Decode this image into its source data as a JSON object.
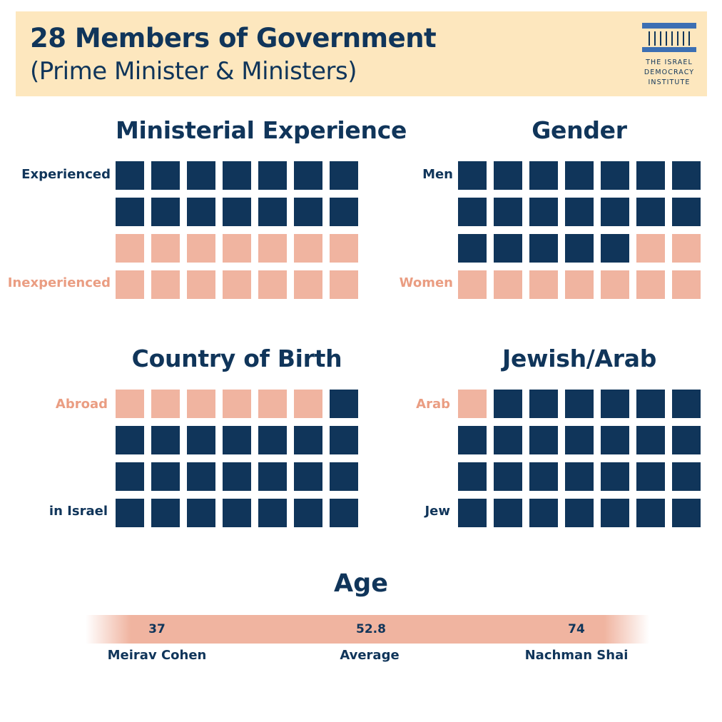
{
  "header": {
    "title": "28 Members of Government",
    "subtitle": "(Prime Minister & Ministers)",
    "logo_lines": [
      "THE ISRAEL",
      "DEMOCRACY",
      "INSTITUTE"
    ]
  },
  "colors": {
    "dark": "#10355a",
    "light": "#f0b4a0",
    "light_text": "#ea9d82",
    "header_bg": "#fde7be"
  },
  "chart_data": [
    {
      "type": "waffle",
      "title": "Ministerial Experience",
      "columns": 7,
      "rows": 4,
      "series": [
        {
          "name": "Experienced",
          "value": 14,
          "color": "dark"
        },
        {
          "name": "Inexperienced",
          "value": 14,
          "color": "light"
        }
      ],
      "cells": [
        [
          "dark",
          "dark",
          "dark",
          "dark",
          "dark",
          "dark",
          "dark"
        ],
        [
          "dark",
          "dark",
          "dark",
          "dark",
          "dark",
          "dark",
          "dark"
        ],
        [
          "light",
          "light",
          "light",
          "light",
          "light",
          "light",
          "light"
        ],
        [
          "light",
          "light",
          "light",
          "light",
          "light",
          "light",
          "light"
        ]
      ]
    },
    {
      "type": "waffle",
      "title": "Gender",
      "columns": 7,
      "rows": 4,
      "series": [
        {
          "name": "Men",
          "value": 19,
          "color": "dark"
        },
        {
          "name": "Women",
          "value": 9,
          "color": "light"
        }
      ],
      "cells": [
        [
          "dark",
          "dark",
          "dark",
          "dark",
          "dark",
          "dark",
          "dark"
        ],
        [
          "dark",
          "dark",
          "dark",
          "dark",
          "dark",
          "dark",
          "dark"
        ],
        [
          "dark",
          "dark",
          "dark",
          "dark",
          "dark",
          "light",
          "light"
        ],
        [
          "light",
          "light",
          "light",
          "light",
          "light",
          "light",
          "light"
        ]
      ]
    },
    {
      "type": "waffle",
      "title": "Country of Birth",
      "columns": 7,
      "rows": 4,
      "series": [
        {
          "name": "Abroad",
          "value": 6,
          "color": "light"
        },
        {
          "name": "in Israel",
          "value": 22,
          "color": "dark"
        }
      ],
      "cells": [
        [
          "light",
          "light",
          "light",
          "light",
          "light",
          "light",
          "dark"
        ],
        [
          "dark",
          "dark",
          "dark",
          "dark",
          "dark",
          "dark",
          "dark"
        ],
        [
          "dark",
          "dark",
          "dark",
          "dark",
          "dark",
          "dark",
          "dark"
        ],
        [
          "dark",
          "dark",
          "dark",
          "dark",
          "dark",
          "dark",
          "dark"
        ]
      ]
    },
    {
      "type": "waffle",
      "title": "Jewish/Arab",
      "columns": 7,
      "rows": 4,
      "series": [
        {
          "name": "Arab",
          "value": 1,
          "color": "light"
        },
        {
          "name": "Jew",
          "value": 27,
          "color": "dark"
        }
      ],
      "cells": [
        [
          "light",
          "dark",
          "dark",
          "dark",
          "dark",
          "dark",
          "dark"
        ],
        [
          "dark",
          "dark",
          "dark",
          "dark",
          "dark",
          "dark",
          "dark"
        ],
        [
          "dark",
          "dark",
          "dark",
          "dark",
          "dark",
          "dark",
          "dark"
        ],
        [
          "dark",
          "dark",
          "dark",
          "dark",
          "dark",
          "dark",
          "dark"
        ]
      ]
    },
    {
      "type": "range",
      "title": "Age",
      "points": [
        {
          "value": "37",
          "label": "Meirav Cohen"
        },
        {
          "value": "52.8",
          "label": "Average"
        },
        {
          "value": "74",
          "label": "Nachman Shai"
        }
      ]
    }
  ]
}
